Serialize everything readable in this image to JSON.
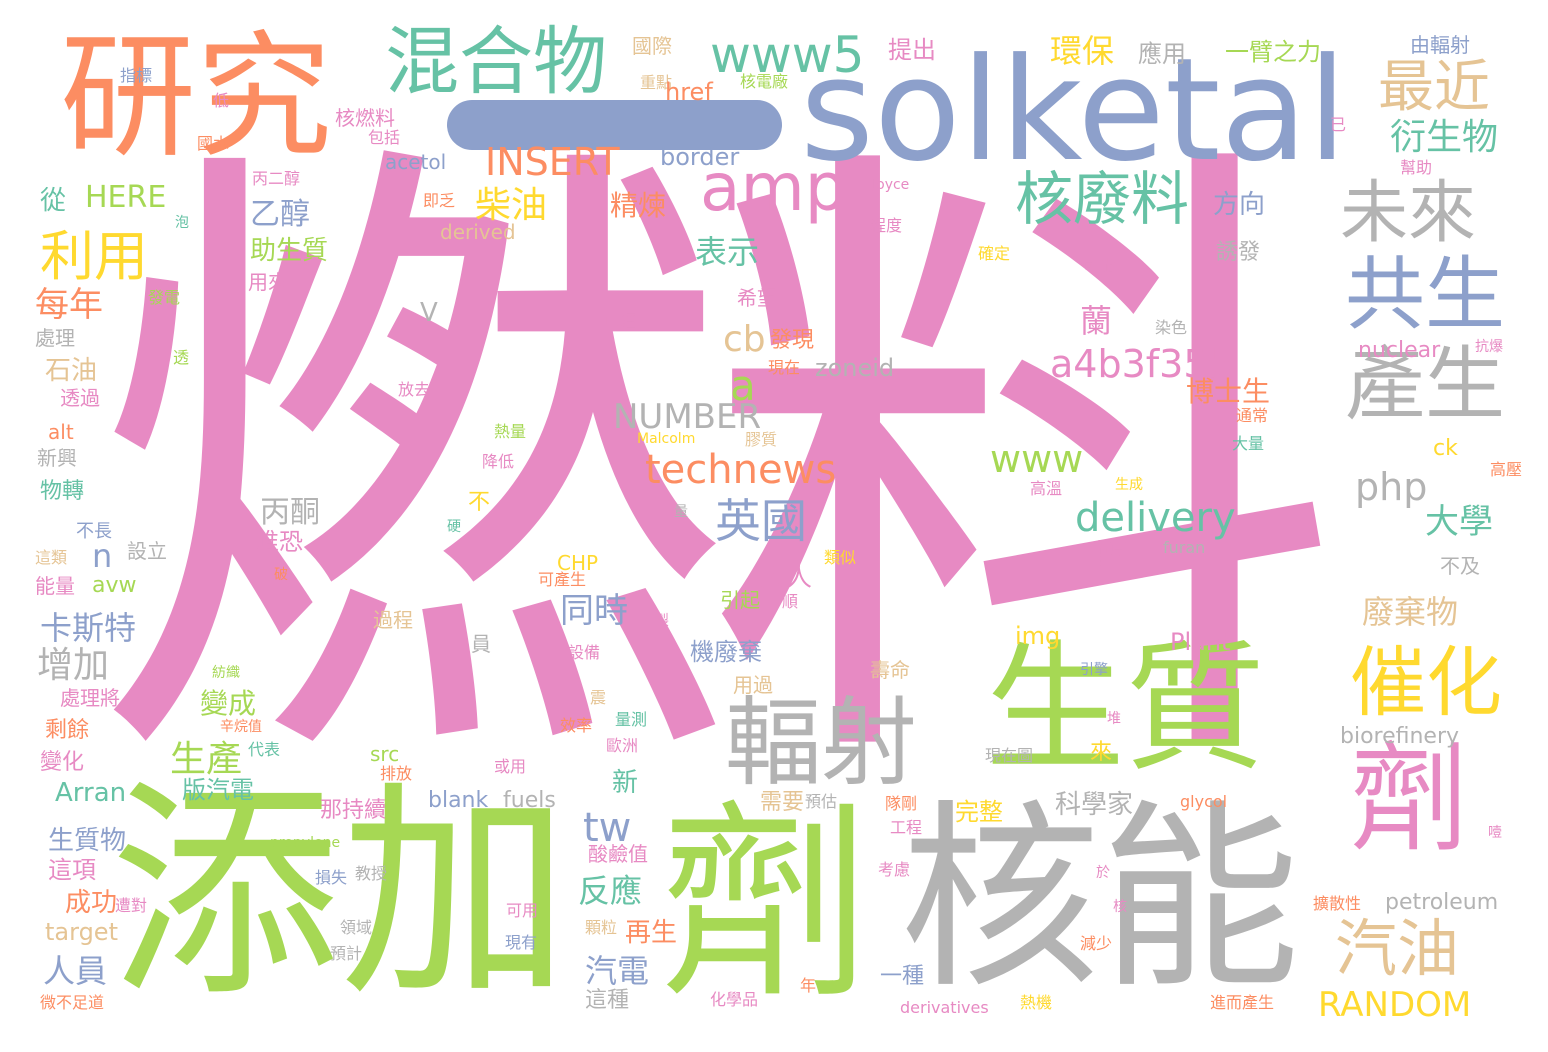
{
  "colors": {
    "pink": "#e78ac3",
    "green": "#a6d854",
    "gray": "#b3b3b3",
    "orange": "#fc8d62",
    "blue": "#8da0cb",
    "teal": "#66c2a5",
    "yellow": "#ffd92f",
    "tan": "#e5c494"
  },
  "words": {
    "ranliao": "燃料",
    "tianjia": "添加",
    "heneng": "核能",
    "jishen1": "劑",
    "solketal": "solketal",
    "yanjiu": "研究",
    "shengzhi": "生質",
    "fushe": "輻射",
    "jishen2": "劑",
    "hunhe": "混合物",
    "www5": "www5",
    "amp": "amp",
    "hefeiliao": "核廢料",
    "weilai": "未來",
    "gongsheng": "共生",
    "chansheng": "產生",
    "cuihua": "催化",
    "qiyou": "汽油",
    "random": "RANDOM",
    "zuijin": "最近",
    "yanshengwu": "衍生物",
    "huanbao": "環保",
    "yingyong": "應用",
    "yibizhili": "一臂之力",
    "youfushe": "由輻射",
    "tichu": "提出",
    "guoji": "國際",
    "zhongdian": "重點",
    "href": "href",
    "hedianchang": "核電廠",
    "zhibiao": "指標",
    "di": "低",
    "guoshui": "國水",
    "baokuo": "包括",
    "heranliao": "核燃料",
    "acetol": "acetol",
    "insert": "INSERT",
    "border": "border",
    "yi": "已",
    "bangzhu": "幫助",
    "bingerchun": "丙二醇",
    "joyce": "Joyce",
    "cong": "從",
    "here": "HERE",
    "chaiyou": "柴油",
    "jilian": "精煉",
    "yichun": "乙醇",
    "jizhi": "即乏",
    "fangxiang": "方向",
    "pao": "泡",
    "derived": "derived",
    "chengdu": "程度",
    "liyong": "利用",
    "zhushengzhi": "助生質",
    "biaoshi": "表示",
    "queding": "確定",
    "youfa": "誘發",
    "keneng": "可能",
    "yonglai": "用來",
    "meinian": "每年",
    "fadian": "發電",
    "xiwang": "希望",
    "lan": "蘭",
    "v": "V",
    "yijing": "已經",
    "cb": "cb",
    "faxian": "發現",
    "ranse": "染色",
    "chuli": "處理",
    "nuclear": "nuclear",
    "kangbao": "抗爆",
    "tou": "透",
    "a4b": "a4b3f35b",
    "xianzai": "現在",
    "zoneid": "zoneid",
    "shiyou": "石油",
    "a": "a",
    "toulu": "透過",
    "fangqu": "放去",
    "boshisheng": "博士生",
    "number": "NUMBER",
    "malcolm": "Malcolm",
    "jiaozhi": "膠質",
    "tongchang": "通常",
    "alt": "alt",
    "reliang": "熱量",
    "daliang": "大量",
    "ck": "ck",
    "xinxing": "新興",
    "jiangdi": "降低",
    "technews": "technews",
    "www": "www",
    "gaoya": "高壓",
    "php": "php",
    "gaowen": "高溫",
    "shengcheng": "生成",
    "wuzhuan": "物轉",
    "bu1": "不",
    "liang": "量",
    "binglin": "丙酮",
    "yingguo": "英國",
    "delivery": "delivery",
    "daxue": "大學",
    "buchang": "不長",
    "ying": "硬",
    "weikong": "唯恐",
    "chun": "醇",
    "sheli": "設立",
    "furan": "furan",
    "n": "n",
    "zhelei": "這類",
    "leisi": "類似",
    "bi": "破",
    "chp": "CHP",
    "buji": "不及",
    "nengliang": "能量",
    "avw": "avw",
    "renren": "人人",
    "kechansheng": "可產生",
    "yinqi": "引起",
    "shun": "順",
    "tongshi": "同時",
    "feiqiwu": "廢棄物",
    "kasite": "卡斯特",
    "zhi": "製",
    "guocheng": "過程",
    "img": "img",
    "plant": "Plant",
    "yuan": "員",
    "jifeiqi": "機廢棄",
    "zengjia": "增加",
    "shebei": "設備",
    "fangzhi": "紡織",
    "shouming": "壽命",
    "yinqing": "引擎",
    "yongguo": "用過",
    "chulijiang": "處理將",
    "biancheng": "變成",
    "zhen": "震",
    "xinwanzhi": "辛烷值",
    "xiaolv": "效率",
    "liangce": "量測",
    "dui": "堆",
    "biorefinery": "biorefinery",
    "shengyu": "剩餘",
    "ouzhou": "歐洲",
    "shengchan": "生產",
    "daibiao": "代表",
    "src": "src",
    "xianzaitu": "現在圖",
    "lai": "來",
    "bianhua": "變化",
    "paifang": "排放",
    "huoyong": "或用",
    "xin": "新",
    "arran": "Arran",
    "banqidian": "版汽電",
    "najichi": "那持續",
    "blank": "blank",
    "fuels": "fuels",
    "xuyao": "需要",
    "yugu": "預估",
    "duigang": "隊剛",
    "glycol": "glycol",
    "kexuejia": "科學家",
    "wanzheng": "完整",
    "gongcheng": "工程",
    "tw": "tw",
    "shengzhiwu": "生質物",
    "propylene": "propylene",
    "suanjianzhi": "酸鹼值",
    "kaolv": "考慮",
    "ye": "噎",
    "zhexiang": "這項",
    "sunshi": "損失",
    "jiaoshou": "教授",
    "yu": "於",
    "fanying": "反應",
    "chenggong": "成功",
    "zaodui": "遭對",
    "keyong": "可用",
    "lingyu": "領域",
    "he": "核",
    "kuosanxing": "擴散性",
    "petroleum": "petroleum",
    "target": "target",
    "keli": "顆粒",
    "zaisheng": "再生",
    "xianyou": "現有",
    "jianshao": "減少",
    "yuji": "預計",
    "renyuan": "人員",
    "qidian": "汽電",
    "yizhong": "一種",
    "nian": "年",
    "zhezhong": "這種",
    "huaxuepin": "化學品",
    "weibuzuda": "微不足道",
    "derivatives": "derivatives",
    "reji": "熱機",
    "jinerchansheng": "進而產生"
  }
}
